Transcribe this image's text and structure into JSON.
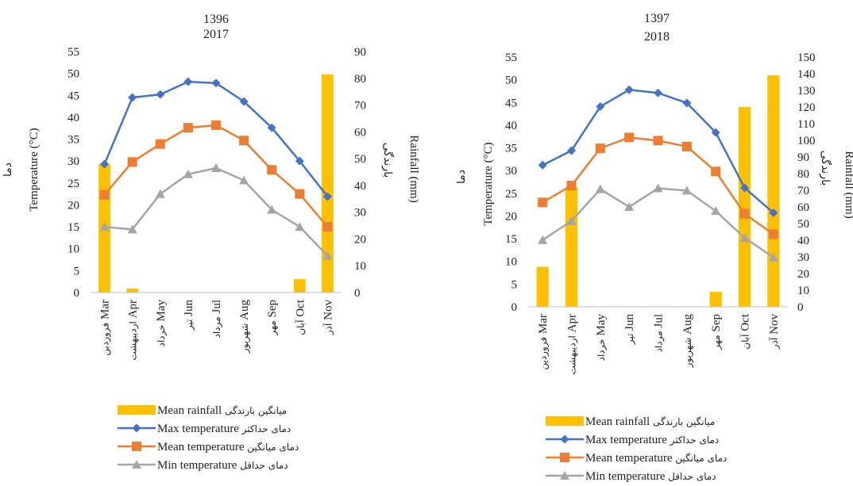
{
  "colors": {
    "rainfall": "#FFC000",
    "max_temp": "#4472C4",
    "mean_temp": "#ED7D31",
    "min_temp": "#A5A5A5",
    "axis": "#BFBFBF",
    "text": "#222222"
  },
  "chart_data": [
    {
      "type": "bar+line",
      "title_line1": "1396",
      "title_line2": "2017",
      "ylabel_left_fa": "دما",
      "ylabel_left": "Temperature (°C)",
      "ylabel_right_fa": "بارندگی",
      "ylabel_right": "Rainfall (mm)",
      "ylim_left": [
        0,
        55
      ],
      "yticks_left": [
        0,
        5,
        10,
        15,
        20,
        25,
        30,
        35,
        40,
        45,
        50,
        55
      ],
      "ylim_right": [
        0,
        90
      ],
      "yticks_right": [
        0,
        10,
        20,
        30,
        40,
        50,
        60,
        70,
        80,
        90
      ],
      "categories_en": [
        "Mar",
        "Apr",
        "May",
        "Jun",
        "Jul",
        "Aug",
        "Sep",
        "Oct",
        "Nov"
      ],
      "categories_fa": [
        "فروردین",
        "اردیبهشت",
        "خرداد",
        "تیر",
        "مرداد",
        "شهریور",
        "مهر",
        "آبان",
        "آذر"
      ],
      "series": [
        {
          "key": "rainfall",
          "kind": "bar",
          "axis": "right",
          "values": [
            48,
            1.5,
            0,
            0,
            0,
            0,
            0,
            5,
            81.5
          ]
        },
        {
          "key": "max_temp",
          "kind": "line",
          "axis": "left",
          "marker": "diamond",
          "values": [
            29.3,
            44.5,
            45.2,
            48.1,
            47.8,
            43.6,
            37.6,
            30.0,
            21.9
          ]
        },
        {
          "key": "mean_temp",
          "kind": "line",
          "axis": "left",
          "marker": "square",
          "values": [
            22.3,
            29.8,
            33.9,
            37.6,
            38.2,
            34.7,
            28.0,
            22.5,
            15.0
          ]
        },
        {
          "key": "min_temp",
          "kind": "line",
          "axis": "left",
          "marker": "triangle",
          "values": [
            15.0,
            14.4,
            22.5,
            27.0,
            28.4,
            25.6,
            18.9,
            15.0,
            8.4
          ]
        }
      ],
      "legend": [
        {
          "key": "rainfall",
          "en": "Mean rainfall",
          "fa": "میانگین بارندگی"
        },
        {
          "key": "max_temp",
          "en": "Max temperature",
          "fa": "دمای حداکثر"
        },
        {
          "key": "mean_temp",
          "en": "Mean temperature",
          "fa": "دمای میانگین"
        },
        {
          "key": "min_temp",
          "en": "Min temperature",
          "fa": "دمای حداقل"
        }
      ]
    },
    {
      "type": "bar+line",
      "title_line1": "1397",
      "title_line2": "2018",
      "ylabel_left_fa": "دما",
      "ylabel_left": "Temperature (°C)",
      "ylabel_right_fa": "بارندگی",
      "ylabel_right": "Rainfall (mm)",
      "ylim_left": [
        0,
        55
      ],
      "yticks_left": [
        0,
        5,
        10,
        15,
        20,
        25,
        30,
        35,
        40,
        45,
        50,
        55
      ],
      "ylim_right": [
        0,
        150
      ],
      "yticks_right": [
        0,
        10,
        20,
        30,
        40,
        50,
        60,
        70,
        80,
        90,
        100,
        110,
        120,
        130,
        140,
        150
      ],
      "categories_en": [
        "Mar",
        "Apr",
        "May",
        "Jun",
        "Jul",
        "Aug",
        "Sep",
        "Oct",
        "Nov"
      ],
      "categories_fa": [
        "فروردین",
        "اردیبهشت",
        "خرداد",
        "تیر",
        "مرداد",
        "شهریور",
        "مهر",
        "آبان",
        "آذر"
      ],
      "series": [
        {
          "key": "rainfall",
          "kind": "bar",
          "axis": "right",
          "values": [
            24,
            72,
            0,
            0,
            0,
            0,
            9,
            120,
            139
          ]
        },
        {
          "key": "max_temp",
          "kind": "line",
          "axis": "left",
          "marker": "diamond",
          "values": [
            31.2,
            34.4,
            44.1,
            47.8,
            47.1,
            44.9,
            38.4,
            26.2,
            20.7
          ]
        },
        {
          "key": "mean_temp",
          "kind": "line",
          "axis": "left",
          "marker": "square",
          "values": [
            23.0,
            26.7,
            34.9,
            37.3,
            36.6,
            35.3,
            29.8,
            20.5,
            16.0
          ]
        },
        {
          "key": "min_temp",
          "kind": "line",
          "axis": "left",
          "marker": "triangle",
          "values": [
            14.7,
            18.9,
            25.9,
            22.0,
            26.1,
            25.6,
            21.1,
            15.2,
            10.9
          ]
        }
      ],
      "legend": [
        {
          "key": "rainfall",
          "en": "Mean rainfall",
          "fa": "میانگین بارندگی"
        },
        {
          "key": "max_temp",
          "en": "Max temperature",
          "fa": "دمای حداکثر"
        },
        {
          "key": "mean_temp",
          "en": "Mean temperature",
          "fa": "دمای میانگین"
        },
        {
          "key": "min_temp",
          "en": "Min temperature",
          "fa": "دمای حداقل"
        }
      ]
    }
  ]
}
